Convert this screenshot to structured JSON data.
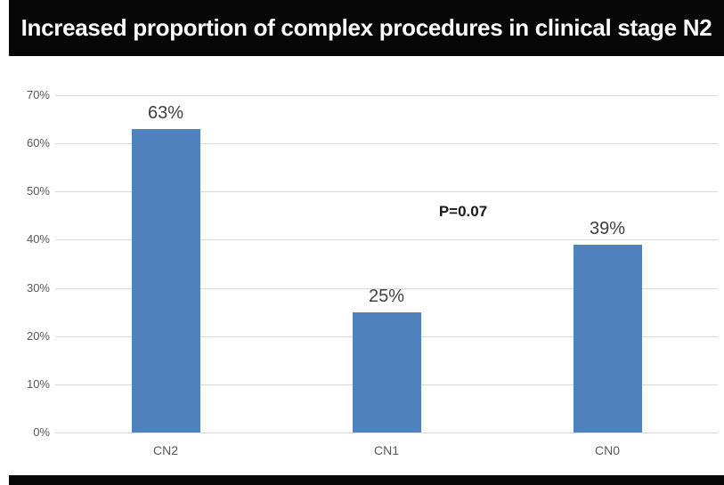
{
  "page": {
    "title": "Increased proportion of complex procedures in clinical stage N2"
  },
  "chart_data": {
    "type": "bar",
    "title": "Increased proportion of complex procedures in clinical stage N2",
    "categories": [
      "CN2",
      "CN1",
      "CN0"
    ],
    "values": [
      63,
      25,
      39
    ],
    "value_labels": [
      "63%",
      "25%",
      "39%"
    ],
    "annotation": "P=0.07",
    "xlabel": "",
    "ylabel": "",
    "ylim": [
      0,
      70
    ],
    "ytick_step": 10,
    "ytick_labels": [
      "0%",
      "10%",
      "20%",
      "30%",
      "40%",
      "50%",
      "60%",
      "70%"
    ],
    "grid": true,
    "legend": false,
    "colors": {
      "bar": "#4f81bd",
      "gridline": "#d9d9d9",
      "axis_text": "#595959",
      "value_text": "#404040",
      "banner_bg": "#070707",
      "banner_text": "#fdfdfd"
    }
  }
}
